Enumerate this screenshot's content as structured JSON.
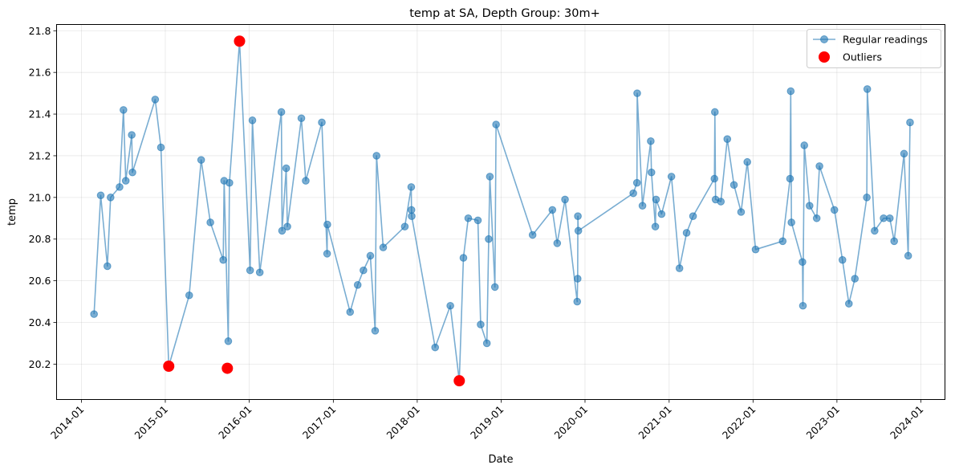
{
  "chart_data": {
    "type": "line",
    "title": "temp at SA, Depth Group: 30m+",
    "xlabel": "Date",
    "ylabel": "temp",
    "x_axis": "date",
    "xlim": [
      "2013-09-15",
      "2024-04-15"
    ],
    "ylim": [
      20.03,
      21.83
    ],
    "x_ticks": [
      "2014-01-01",
      "2015-01-01",
      "2016-01-01",
      "2017-01-01",
      "2018-01-01",
      "2019-01-01",
      "2020-01-01",
      "2021-01-01",
      "2022-01-01",
      "2023-01-01",
      "2024-01-01"
    ],
    "x_tick_labels": [
      "2014-01",
      "2015-01",
      "2016-01",
      "2017-01",
      "2018-01",
      "2019-01",
      "2020-01",
      "2021-01",
      "2022-01",
      "2023-01",
      "2024-01"
    ],
    "y_ticks": [
      20.2,
      20.4,
      20.6,
      20.8,
      21.0,
      21.2,
      21.4,
      21.6,
      21.8
    ],
    "y_tick_labels": [
      "20.2",
      "20.4",
      "20.6",
      "20.8",
      "21.0",
      "21.2",
      "21.4",
      "21.6",
      "21.8"
    ],
    "grid": true,
    "legend_position": "top-right",
    "series": [
      {
        "name": "Regular readings",
        "color": "#1f77b4",
        "style": "line-with-markers",
        "points": [
          [
            "2014-02-25",
            20.44
          ],
          [
            "2014-03-26",
            21.01
          ],
          [
            "2014-04-24",
            20.67
          ],
          [
            "2014-05-08",
            21.0
          ],
          [
            "2014-06-16",
            21.05
          ],
          [
            "2014-07-03",
            21.42
          ],
          [
            "2014-07-13",
            21.08
          ],
          [
            "2014-08-08",
            21.3
          ],
          [
            "2014-08-11",
            21.12
          ],
          [
            "2014-11-18",
            21.47
          ],
          [
            "2014-12-13",
            21.24
          ],
          [
            "2015-01-16",
            20.19
          ],
          [
            "2015-04-15",
            20.53
          ],
          [
            "2015-06-06",
            21.18
          ],
          [
            "2015-07-16",
            20.88
          ],
          [
            "2015-09-10",
            20.7
          ],
          [
            "2015-09-14",
            21.08
          ],
          [
            "2015-10-02",
            20.31
          ],
          [
            "2015-10-07",
            21.07
          ],
          [
            "2015-11-20",
            21.75
          ],
          [
            "2016-01-05",
            20.65
          ],
          [
            "2016-01-15",
            21.37
          ],
          [
            "2016-02-16",
            20.64
          ],
          [
            "2016-05-20",
            21.41
          ],
          [
            "2016-05-23",
            20.84
          ],
          [
            "2016-06-10",
            21.14
          ],
          [
            "2016-06-15",
            20.86
          ],
          [
            "2016-08-15",
            21.38
          ],
          [
            "2016-09-03",
            21.08
          ],
          [
            "2016-11-12",
            21.36
          ],
          [
            "2016-12-05",
            20.73
          ],
          [
            "2016-12-06",
            20.87
          ],
          [
            "2017-03-15",
            20.45
          ],
          [
            "2017-04-17",
            20.58
          ],
          [
            "2017-05-12",
            20.65
          ],
          [
            "2017-06-11",
            20.72
          ],
          [
            "2017-07-02",
            20.36
          ],
          [
            "2017-07-08",
            21.2
          ],
          [
            "2017-08-06",
            20.76
          ],
          [
            "2017-11-08",
            20.86
          ],
          [
            "2017-12-06",
            21.05
          ],
          [
            "2017-12-07",
            20.94
          ],
          [
            "2017-12-08",
            20.91
          ],
          [
            "2018-03-20",
            20.28
          ],
          [
            "2018-05-25",
            20.48
          ],
          [
            "2018-07-03",
            20.12
          ],
          [
            "2018-07-21",
            20.71
          ],
          [
            "2018-08-11",
            20.9
          ],
          [
            "2018-09-22",
            20.89
          ],
          [
            "2018-10-04",
            20.39
          ],
          [
            "2018-10-31",
            20.3
          ],
          [
            "2018-11-08",
            20.8
          ],
          [
            "2018-11-13",
            21.1
          ],
          [
            "2018-12-05",
            20.57
          ],
          [
            "2018-12-10",
            21.35
          ],
          [
            "2019-05-18",
            20.82
          ],
          [
            "2019-08-12",
            20.94
          ],
          [
            "2019-09-02",
            20.78
          ],
          [
            "2019-10-06",
            20.99
          ],
          [
            "2019-11-28",
            20.5
          ],
          [
            "2019-11-30",
            20.61
          ],
          [
            "2019-12-01",
            20.91
          ],
          [
            "2019-12-03",
            20.84
          ],
          [
            "2020-07-29",
            21.02
          ],
          [
            "2020-08-14",
            21.07
          ],
          [
            "2020-08-15",
            21.5
          ],
          [
            "2020-09-07",
            20.96
          ],
          [
            "2020-10-13",
            21.27
          ],
          [
            "2020-10-16",
            21.12
          ],
          [
            "2020-11-02",
            20.86
          ],
          [
            "2020-11-05",
            20.99
          ],
          [
            "2020-11-29",
            20.92
          ],
          [
            "2021-01-11",
            21.1
          ],
          [
            "2021-02-15",
            20.66
          ],
          [
            "2021-03-18",
            20.83
          ],
          [
            "2021-04-15",
            20.91
          ],
          [
            "2021-07-17",
            21.09
          ],
          [
            "2021-07-19",
            21.41
          ],
          [
            "2021-07-22",
            20.99
          ],
          [
            "2021-08-14",
            20.98
          ],
          [
            "2021-09-11",
            21.28
          ],
          [
            "2021-10-10",
            21.06
          ],
          [
            "2021-11-10",
            20.93
          ],
          [
            "2021-12-07",
            21.17
          ],
          [
            "2022-01-12",
            20.75
          ],
          [
            "2022-05-10",
            20.79
          ],
          [
            "2022-06-11",
            21.09
          ],
          [
            "2022-06-14",
            21.51
          ],
          [
            "2022-06-17",
            20.88
          ],
          [
            "2022-08-04",
            20.69
          ],
          [
            "2022-08-06",
            20.48
          ],
          [
            "2022-08-12",
            21.25
          ],
          [
            "2022-09-04",
            20.96
          ],
          [
            "2022-10-05",
            20.9
          ],
          [
            "2022-10-17",
            21.15
          ],
          [
            "2022-12-21",
            20.94
          ],
          [
            "2023-01-25",
            20.7
          ],
          [
            "2023-02-22",
            20.49
          ],
          [
            "2023-03-20",
            20.61
          ],
          [
            "2023-05-11",
            21.0
          ],
          [
            "2023-05-13",
            21.52
          ],
          [
            "2023-06-14",
            20.84
          ],
          [
            "2023-07-23",
            20.9
          ],
          [
            "2023-08-19",
            20.9
          ],
          [
            "2023-09-07",
            20.79
          ],
          [
            "2023-10-20",
            21.21
          ],
          [
            "2023-11-07",
            20.72
          ],
          [
            "2023-11-15",
            21.36
          ]
        ]
      },
      {
        "name": "Outliers",
        "color": "#ff0000",
        "style": "markers",
        "points": [
          [
            "2015-01-16",
            20.19
          ],
          [
            "2015-09-28",
            20.18
          ],
          [
            "2015-11-20",
            21.75
          ],
          [
            "2018-07-03",
            20.12
          ]
        ]
      }
    ]
  }
}
